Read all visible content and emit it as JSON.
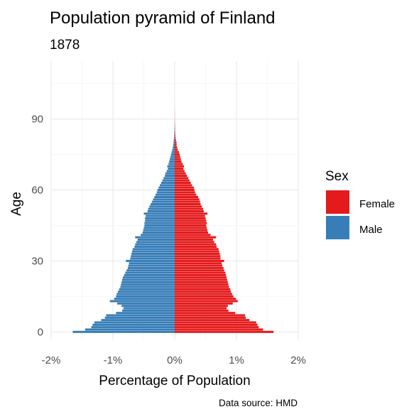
{
  "chart_data": {
    "type": "bar",
    "orientation": "horizontal",
    "title": "Population pyramid of Finland",
    "subtitle": "1878",
    "xlabel": "Percentage of Population",
    "ylabel": "Age",
    "caption": "Data source: HMD",
    "xlim": [
      -2,
      2
    ],
    "ylim": [
      -3.5,
      114.5
    ],
    "x_ticks": [
      -2,
      -1,
      0,
      1,
      2
    ],
    "x_tick_labels": [
      "-2%",
      "-1%",
      "0%",
      "1%",
      "2%"
    ],
    "y_ticks": [
      0,
      30,
      60,
      90
    ],
    "y_tick_labels": [
      "0",
      "30",
      "60",
      "90"
    ],
    "legend": {
      "title": "Sex",
      "position": "right",
      "entries": [
        {
          "label": "Female",
          "color": "#E41A1C"
        },
        {
          "label": "Male",
          "color": "#377EB8"
        }
      ]
    },
    "ages": [
      0,
      1,
      2,
      3,
      4,
      5,
      6,
      7,
      8,
      9,
      10,
      11,
      12,
      13,
      14,
      15,
      16,
      17,
      18,
      19,
      20,
      21,
      22,
      23,
      24,
      25,
      26,
      27,
      28,
      29,
      30,
      31,
      32,
      33,
      34,
      35,
      36,
      37,
      38,
      39,
      40,
      41,
      42,
      43,
      44,
      45,
      46,
      47,
      48,
      49,
      50,
      51,
      52,
      53,
      54,
      55,
      56,
      57,
      58,
      59,
      60,
      61,
      62,
      63,
      64,
      65,
      66,
      67,
      68,
      69,
      70,
      71,
      72,
      73,
      74,
      75,
      76,
      77,
      78,
      79,
      80,
      81,
      82,
      83,
      84,
      85,
      86,
      87,
      88,
      89,
      90,
      91,
      92,
      93,
      94,
      95,
      96,
      97,
      98,
      99
    ],
    "series": [
      {
        "name": "Female",
        "color": "#E41A1C",
        "values": [
          1.6,
          1.43,
          1.36,
          1.34,
          1.32,
          1.21,
          1.15,
          1.14,
          0.98,
          0.87,
          0.84,
          0.86,
          0.94,
          1.02,
          0.99,
          0.95,
          0.93,
          0.91,
          0.9,
          0.88,
          0.87,
          0.86,
          0.85,
          0.84,
          0.83,
          0.82,
          0.8,
          0.79,
          0.77,
          0.76,
          0.8,
          0.74,
          0.74,
          0.73,
          0.72,
          0.71,
          0.68,
          0.67,
          0.64,
          0.62,
          0.67,
          0.58,
          0.54,
          0.53,
          0.52,
          0.51,
          0.52,
          0.51,
          0.5,
          0.49,
          0.53,
          0.47,
          0.46,
          0.44,
          0.42,
          0.41,
          0.4,
          0.38,
          0.35,
          0.33,
          0.32,
          0.31,
          0.28,
          0.26,
          0.24,
          0.22,
          0.2,
          0.18,
          0.16,
          0.14,
          0.15,
          0.13,
          0.11,
          0.1,
          0.09,
          0.08,
          0.07,
          0.05,
          0.04,
          0.03,
          0.03,
          0.02,
          0.015,
          0.01,
          0.008,
          0.006,
          0.005,
          0.004,
          0.003,
          0.002,
          0.002,
          0.001,
          0.001,
          0.001,
          0.0005,
          0.0005,
          0.0003,
          0.0002,
          0.0001,
          0.0001
        ]
      },
      {
        "name": "Male",
        "color": "#377EB8",
        "values": [
          -1.65,
          -1.45,
          -1.35,
          -1.33,
          -1.3,
          -1.19,
          -1.13,
          -1.11,
          -0.95,
          -0.85,
          -0.83,
          -0.86,
          -0.93,
          -1.05,
          -0.98,
          -0.95,
          -0.94,
          -0.92,
          -0.9,
          -0.88,
          -0.87,
          -0.86,
          -0.85,
          -0.84,
          -0.82,
          -0.8,
          -0.78,
          -0.76,
          -0.75,
          -0.74,
          -0.79,
          -0.72,
          -0.71,
          -0.7,
          -0.69,
          -0.68,
          -0.65,
          -0.64,
          -0.62,
          -0.6,
          -0.64,
          -0.55,
          -0.52,
          -0.51,
          -0.5,
          -0.49,
          -0.49,
          -0.48,
          -0.48,
          -0.47,
          -0.5,
          -0.44,
          -0.43,
          -0.41,
          -0.39,
          -0.37,
          -0.35,
          -0.33,
          -0.31,
          -0.29,
          -0.28,
          -0.26,
          -0.24,
          -0.22,
          -0.2,
          -0.18,
          -0.16,
          -0.15,
          -0.13,
          -0.11,
          -0.12,
          -0.1,
          -0.09,
          -0.08,
          -0.07,
          -0.06,
          -0.05,
          -0.04,
          -0.03,
          -0.025,
          -0.02,
          -0.015,
          -0.01,
          -0.008,
          -0.006,
          -0.005,
          -0.004,
          -0.003,
          -0.002,
          -0.002,
          -0.001,
          -0.001,
          -0.001,
          -0.0005,
          -0.0005,
          -0.0003,
          -0.0002,
          -0.0001,
          -0.0001,
          -0.0001
        ]
      }
    ]
  }
}
